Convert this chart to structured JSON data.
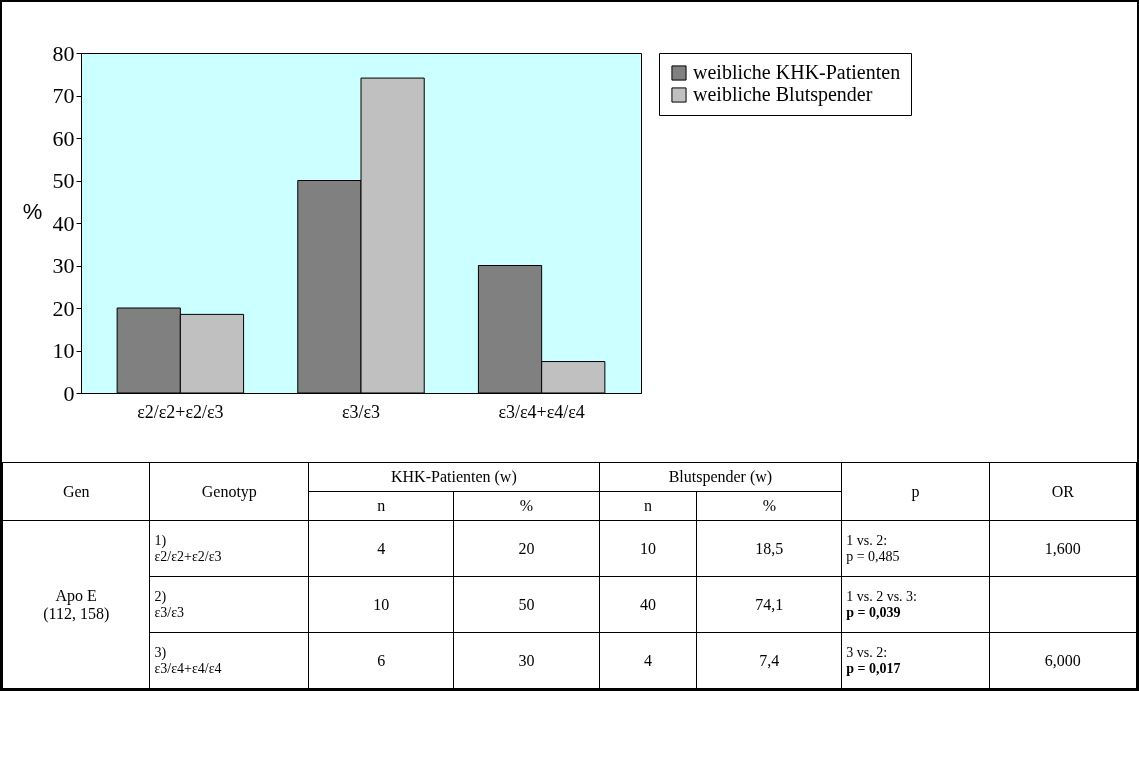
{
  "chart_data": {
    "type": "bar",
    "ylabel": "%",
    "categories": [
      "ε2/ε2+ε2/ε3",
      "ε3/ε3",
      "ε3/ε4+ε4/ε4"
    ],
    "series": [
      {
        "name": "weibliche KHK-Patienten",
        "color": "#808080",
        "values": [
          20,
          50,
          30
        ]
      },
      {
        "name": "weibliche Blutspender",
        "color": "#c0c0c0",
        "values": [
          18.5,
          74.1,
          7.4
        ]
      }
    ],
    "ylim": [
      0,
      80
    ],
    "yticks": [
      0,
      10,
      20,
      30,
      40,
      50,
      60,
      70,
      80
    ],
    "grid": false,
    "legend": "right",
    "annotations": [
      "Gen",
      "Genotyp",
      "KHK-Patienten (w)",
      "Blutspender (w)",
      "p",
      "OR",
      "n",
      "%",
      "Apo E\n(112, 158)",
      "1)\nε2/ε2+ε2/ε3",
      "4",
      "10",
      "1 vs. 2:\np = 0,485",
      "1,600",
      "2)\nε3/ε3",
      "10",
      "40",
      "1 vs. 2 vs. 3:\np = 0,039",
      "3)\nε3/ε4+ε4/ε4",
      "6",
      "4",
      "3 vs. 2:\np = 0,017",
      "6,000",
      "20",
      "50",
      "30",
      "18,5",
      "74,1",
      "7,4"
    ]
  }
}
